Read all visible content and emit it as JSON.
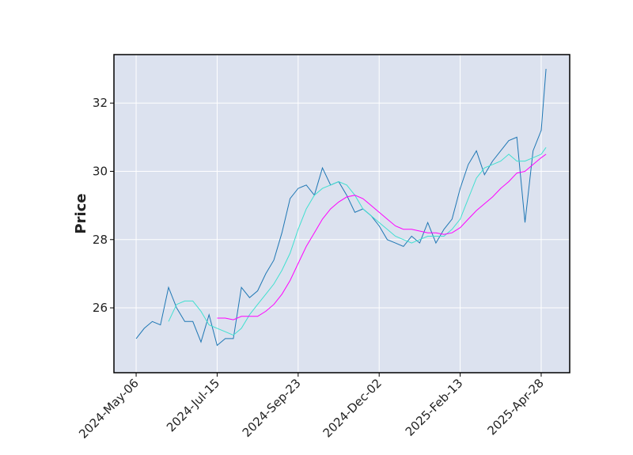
{
  "chart_data": {
    "type": "line",
    "ylabel": "Price",
    "x": [
      0,
      5,
      10,
      15,
      20,
      25,
      30,
      35,
      40,
      45,
      50,
      55,
      60,
      65,
      70,
      75,
      80,
      85,
      90,
      95,
      100,
      105,
      110,
      115,
      120,
      125,
      130,
      135,
      140,
      145,
      150,
      155,
      160,
      165,
      170,
      175,
      180,
      185,
      190,
      195,
      200,
      205,
      210,
      215,
      220,
      225,
      230,
      235,
      240,
      245,
      250,
      253
    ],
    "series": [
      {
        "color": "#1f77b4",
        "values": [
          25.1,
          25.4,
          25.6,
          25.5,
          26.6,
          26.0,
          25.6,
          25.6,
          25.0,
          25.8,
          24.9,
          25.1,
          25.1,
          26.6,
          26.3,
          26.5,
          27.0,
          27.4,
          28.2,
          29.2,
          29.5,
          29.6,
          29.3,
          30.1,
          29.6,
          29.7,
          29.3,
          28.8,
          28.9,
          28.7,
          28.4,
          28.0,
          27.9,
          27.8,
          28.1,
          27.9,
          28.5,
          27.9,
          28.3,
          28.6,
          29.5,
          30.2,
          30.6,
          29.9,
          30.3,
          30.6,
          30.9,
          31.0,
          28.5,
          30.6,
          31.2,
          33.0
        ]
      },
      {
        "color": "#40e0d0",
        "values": [
          null,
          null,
          null,
          null,
          25.6,
          26.1,
          26.2,
          26.2,
          25.9,
          25.5,
          25.4,
          25.3,
          25.2,
          25.4,
          25.8,
          26.1,
          26.4,
          26.7,
          27.1,
          27.6,
          28.3,
          28.9,
          29.3,
          29.5,
          29.6,
          29.7,
          29.6,
          29.3,
          28.9,
          28.7,
          28.5,
          28.3,
          28.1,
          28.0,
          27.9,
          28.0,
          28.1,
          28.1,
          28.1,
          28.3,
          28.6,
          29.2,
          29.8,
          30.1,
          30.2,
          30.3,
          30.5,
          30.3,
          30.3,
          30.4,
          30.5,
          30.7
        ]
      },
      {
        "color": "#ff00ff",
        "values": [
          null,
          null,
          null,
          null,
          null,
          null,
          null,
          null,
          null,
          null,
          25.7,
          25.7,
          25.65,
          25.75,
          25.75,
          25.75,
          25.9,
          26.1,
          26.4,
          26.8,
          27.3,
          27.8,
          28.2,
          28.6,
          28.9,
          29.1,
          29.25,
          29.3,
          29.2,
          29.0,
          28.8,
          28.6,
          28.4,
          28.3,
          28.3,
          28.25,
          28.2,
          28.2,
          28.15,
          28.2,
          28.35,
          28.6,
          28.85,
          29.05,
          29.25,
          29.5,
          29.7,
          29.95,
          30.0,
          30.2,
          30.4,
          30.5
        ]
      }
    ],
    "xlim": [
      -13.7,
      267.6
    ],
    "xticks": [
      {
        "value": 0,
        "label": "2024-May-06"
      },
      {
        "value": 50,
        "label": "2024-Jul-15"
      },
      {
        "value": 100,
        "label": "2024-Sep-23"
      },
      {
        "value": 150,
        "label": "2024-Dec-02"
      },
      {
        "value": 200,
        "label": "2025-Feb-13"
      },
      {
        "value": 250,
        "label": "2025-Apr-28"
      }
    ],
    "ylim": [
      24.1,
      33.42
    ],
    "yticks": [
      26,
      28,
      30,
      32
    ],
    "grid": true,
    "background": "#dce2ef"
  }
}
